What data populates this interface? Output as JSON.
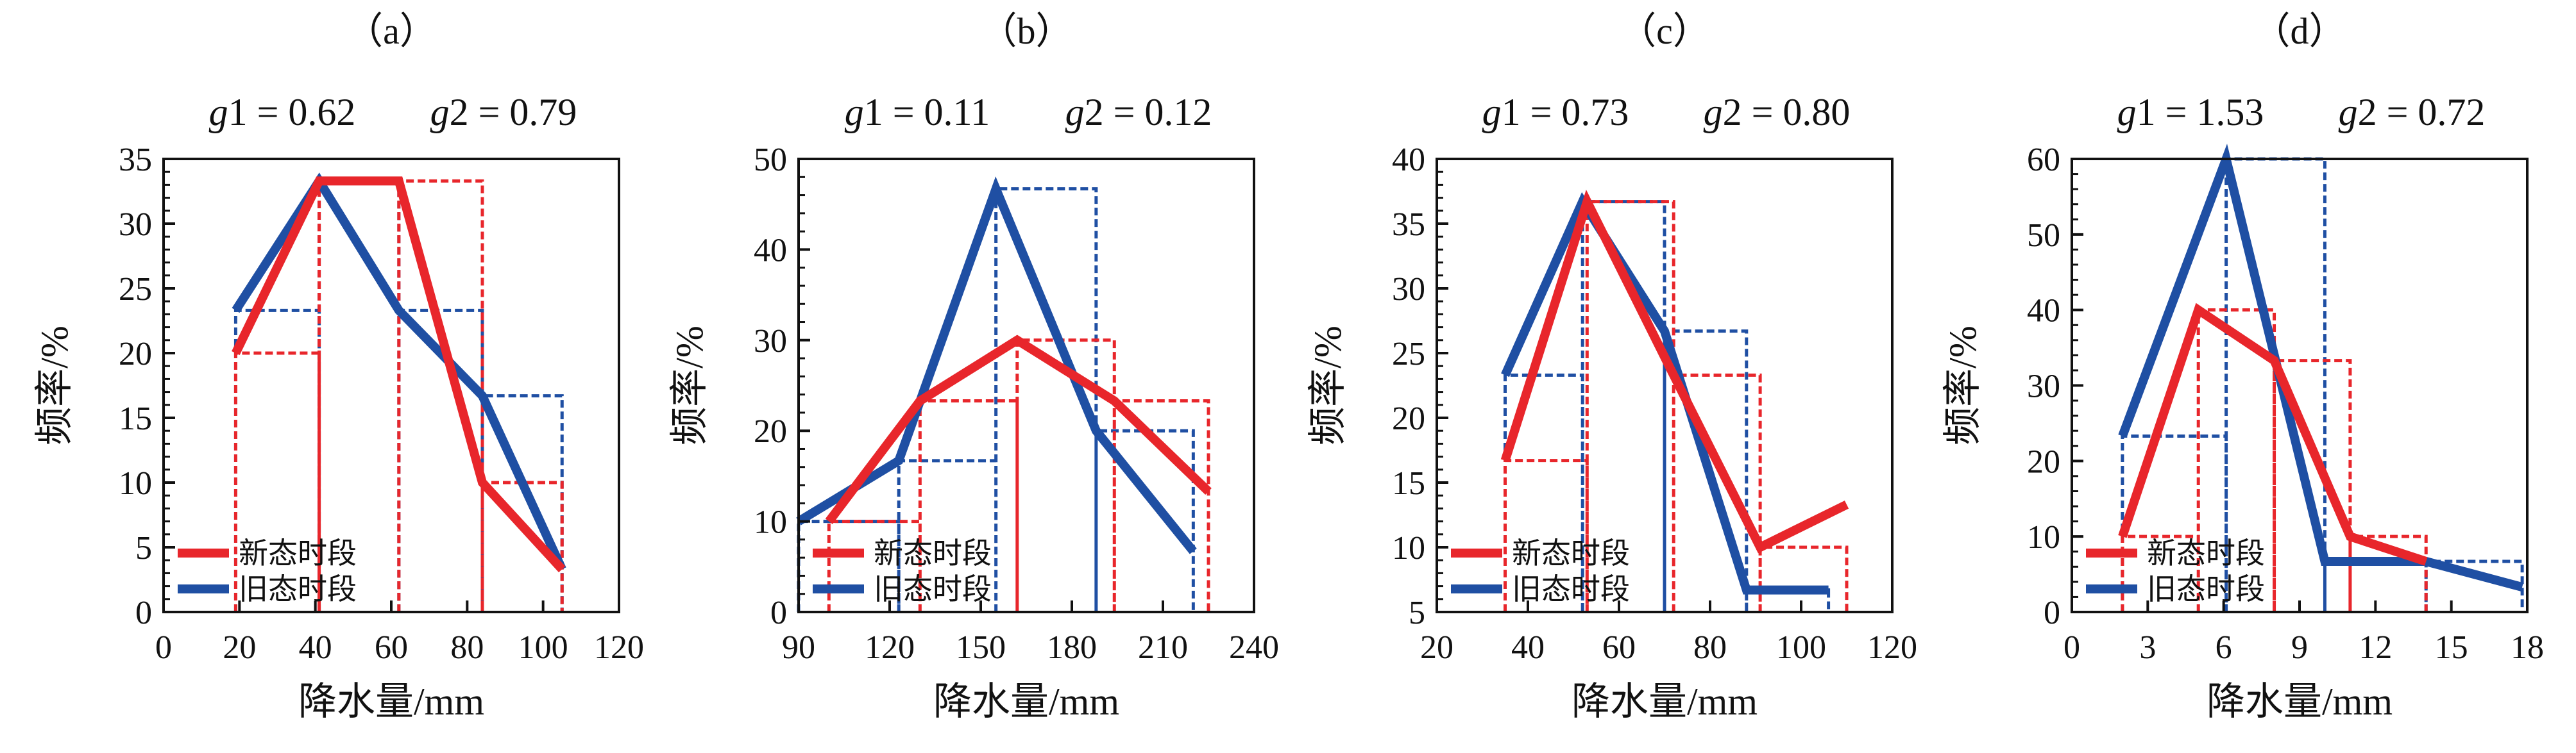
{
  "colors": {
    "new": "#e8262b",
    "old": "#1f4fa3",
    "axis": "#111111"
  },
  "legend": {
    "new_label": "新态时段",
    "old_label": "旧态时段",
    "position": "bottom-left"
  },
  "chart_data": [
    {
      "type": "line",
      "panel_label": "（a）",
      "g1_text": "g1 = 0.62",
      "g2_text": "g2 = 0.79",
      "xlabel": "降水量/mm",
      "ylabel": "频率/%",
      "xlim": [
        0,
        120
      ],
      "xticks": [
        0,
        20,
        40,
        60,
        80,
        100,
        120
      ],
      "ylim": [
        0,
        35
      ],
      "yticks": [
        0,
        5,
        10,
        15,
        20,
        25,
        30,
        35
      ],
      "series": [
        {
          "name": "新态时段",
          "x": [
            19,
            41,
            62,
            84,
            105
          ],
          "y": [
            20,
            33.3,
            33.3,
            10,
            3.3
          ]
        },
        {
          "name": "旧态时段",
          "x": [
            19,
            41,
            62,
            84,
            105
          ],
          "y": [
            23.3,
            33.3,
            23.3,
            16.7,
            3.3
          ]
        }
      ],
      "histogram": [
        {
          "series": "新态时段",
          "edges": [
            19,
            41,
            62,
            84,
            105
          ],
          "heights": [
            20,
            33.3,
            33.3,
            10
          ]
        },
        {
          "series": "旧态时段",
          "edges": [
            19,
            41,
            62,
            84,
            105
          ],
          "heights": [
            23.3,
            33.3,
            23.3,
            16.7
          ]
        }
      ]
    },
    {
      "type": "line",
      "panel_label": "（b）",
      "g1_text": "g1 = 0.11",
      "g2_text": "g2 = 0.12",
      "xlabel": "降水量/mm",
      "ylabel": "频率/%",
      "xlim": [
        90,
        240
      ],
      "xticks": [
        90,
        120,
        150,
        180,
        210,
        240
      ],
      "ylim": [
        0,
        50
      ],
      "yticks": [
        0,
        10,
        20,
        30,
        40,
        50
      ],
      "series": [
        {
          "name": "新态时段",
          "x": [
            100,
            130,
            162,
            194,
            225
          ],
          "y": [
            10,
            23.3,
            30,
            23.3,
            13.3
          ]
        },
        {
          "name": "旧态时段",
          "x": [
            90,
            123,
            155,
            188,
            220
          ],
          "y": [
            10,
            16.7,
            46.7,
            20,
            6.7
          ]
        }
      ],
      "histogram": [
        {
          "series": "新态时段",
          "edges": [
            100,
            130,
            162,
            194,
            225
          ],
          "heights": [
            10,
            23.3,
            30,
            23.3
          ]
        },
        {
          "series": "旧态时段",
          "edges": [
            90,
            123,
            155,
            188,
            220
          ],
          "heights": [
            10,
            16.7,
            46.7,
            20
          ]
        }
      ]
    },
    {
      "type": "line",
      "panel_label": "（c）",
      "g1_text": "g1 = 0.73",
      "g2_text": "g2 = 0.80",
      "xlabel": "降水量/mm",
      "ylabel": "频率/%",
      "xlim": [
        20,
        120
      ],
      "xticks": [
        20,
        40,
        60,
        80,
        100,
        120
      ],
      "ylim": [
        5,
        40
      ],
      "yticks": [
        5,
        10,
        15,
        20,
        25,
        30,
        35,
        40
      ],
      "series": [
        {
          "name": "新态时段",
          "x": [
            35,
            53,
            72,
            91,
            110
          ],
          "y": [
            16.7,
            36.7,
            23.3,
            10,
            13.3
          ]
        },
        {
          "name": "旧态时段",
          "x": [
            35,
            52,
            70,
            88,
            106
          ],
          "y": [
            23.3,
            36.7,
            26.7,
            6.7,
            6.7
          ]
        }
      ],
      "histogram": [
        {
          "series": "新态时段",
          "edges": [
            35,
            53,
            72,
            91,
            110
          ],
          "heights": [
            16.7,
            36.7,
            23.3,
            10
          ]
        },
        {
          "series": "旧态时段",
          "edges": [
            35,
            52,
            70,
            88,
            106
          ],
          "heights": [
            23.3,
            36.7,
            26.7,
            6.7
          ]
        }
      ]
    },
    {
      "type": "line",
      "panel_label": "（d）",
      "g1_text": "g1 = 1.53",
      "g2_text": "g2 = 0.72",
      "xlabel": "降水量/mm",
      "ylabel": "频率/%",
      "xlim": [
        0,
        18
      ],
      "xticks": [
        0,
        3,
        6,
        9,
        12,
        15,
        18
      ],
      "ylim": [
        0,
        60
      ],
      "yticks": [
        0,
        10,
        20,
        30,
        40,
        50,
        60
      ],
      "series": [
        {
          "name": "新态时段",
          "x": [
            2,
            5,
            8,
            11,
            14
          ],
          "y": [
            10,
            40,
            33.3,
            10,
            6.7
          ]
        },
        {
          "name": "旧态时段",
          "x": [
            2,
            6.1,
            10,
            14,
            17.8
          ],
          "y": [
            23.3,
            60,
            6.7,
            6.7,
            3.3
          ]
        }
      ],
      "histogram": [
        {
          "series": "新态时段",
          "edges": [
            2,
            5,
            8,
            11,
            14
          ],
          "heights": [
            10,
            40,
            33.3,
            10
          ]
        },
        {
          "series": "旧态时段",
          "edges": [
            2,
            6.1,
            10,
            14,
            17.8
          ],
          "heights": [
            23.3,
            60,
            6.7,
            6.7
          ]
        }
      ]
    }
  ]
}
